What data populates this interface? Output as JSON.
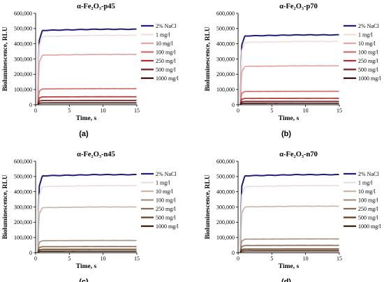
{
  "figure": {
    "panel_labels": [
      "(a)",
      "(b)",
      "(c)",
      "(d)"
    ]
  },
  "chart_data": [
    {
      "type": "line",
      "title": "α-Fe₂O₃-p45",
      "xlabel": "Time, s",
      "ylabel": "Bioluminescence, RLU",
      "xlim": [
        0,
        15
      ],
      "ylim": [
        0,
        600000
      ],
      "xticks": [
        0,
        5,
        10,
        15
      ],
      "yticks": [
        0,
        100000,
        200000,
        300000,
        400000,
        500000,
        600000
      ],
      "ytick_labels": [
        "0",
        "100,000",
        "200,000",
        "300,000",
        "400,000",
        "500,000",
        "600,000"
      ],
      "legend_position": "right",
      "series": [
        {
          "name": "2% NaCl",
          "color": "#1f1f7a",
          "plateau": 495000
        },
        {
          "name": "1 mg/l",
          "color": "#f2dede",
          "plateau": 455000
        },
        {
          "name": "10 mg/l",
          "color": "#eaa3a3",
          "plateau": 330000
        },
        {
          "name": "100 mg/l",
          "color": "#d07070",
          "plateau": 105000
        },
        {
          "name": "250 mg/l",
          "color": "#b23030",
          "plateau": 52000
        },
        {
          "name": "500 mg/l",
          "color": "#7a1f1f",
          "plateau": 28000
        },
        {
          "name": "1000 mg/l",
          "color": "#3e0b0b",
          "plateau": 12000
        }
      ]
    },
    {
      "type": "line",
      "title": "α-Fe₂O₃-p70",
      "xlabel": "Time, s",
      "ylabel": "Bioluminescence, RLU",
      "xlim": [
        0,
        15
      ],
      "ylim": [
        0,
        600000
      ],
      "xticks": [
        0,
        5,
        10,
        15
      ],
      "yticks": [
        0,
        100000,
        200000,
        300000,
        400000,
        500000,
        600000
      ],
      "ytick_labels": [
        "0",
        "100,000",
        "200,000",
        "300,000",
        "400,000",
        "500,000",
        "600,000"
      ],
      "legend_position": "right",
      "series": [
        {
          "name": "2% NaCl",
          "color": "#1f1f7a",
          "plateau": 458000
        },
        {
          "name": "1 mg/l",
          "color": "#f2dede",
          "plateau": 415000
        },
        {
          "name": "10 mg/l",
          "color": "#eaa3a3",
          "plateau": 255000
        },
        {
          "name": "100 mg/l",
          "color": "#d07070",
          "plateau": 88000
        },
        {
          "name": "250 mg/l",
          "color": "#b23030",
          "plateau": 42000
        },
        {
          "name": "500 mg/l",
          "color": "#7a1f1f",
          "plateau": 22000
        },
        {
          "name": "1000 mg/l",
          "color": "#3e0b0b",
          "plateau": 10000
        }
      ]
    },
    {
      "type": "line",
      "title": "α-Fe₂O₃-n45",
      "xlabel": "Time, s",
      "ylabel": "Bioluminescence, RLU",
      "xlim": [
        0,
        15
      ],
      "ylim": [
        0,
        600000
      ],
      "xticks": [
        0,
        5,
        10,
        15
      ],
      "yticks": [
        0,
        100000,
        200000,
        300000,
        400000,
        500000,
        600000
      ],
      "ytick_labels": [
        "0",
        "100,000",
        "200,000",
        "300,000",
        "400,000",
        "500,000",
        "600,000"
      ],
      "legend_position": "right",
      "series": [
        {
          "name": "2% NaCl",
          "color": "#1f1f7a",
          "plateau": 512000
        },
        {
          "name": "1 mg/l",
          "color": "#eedcdc",
          "plateau": 440000
        },
        {
          "name": "10 mg/l",
          "color": "#c9b7aa",
          "plateau": 300000
        },
        {
          "name": "100 mg/l",
          "color": "#a89484",
          "plateau": 80000
        },
        {
          "name": "250 mg/l",
          "color": "#8a6d52",
          "plateau": 40000
        },
        {
          "name": "500 mg/l",
          "color": "#6a3d1c",
          "plateau": 22000
        },
        {
          "name": "1000 mg/l",
          "color": "#3e1c08",
          "plateau": 10000
        }
      ]
    },
    {
      "type": "line",
      "title": "α-Fe₂O₃-n70",
      "xlabel": "Time, s",
      "ylabel": "Bioluminescence, RLU",
      "xlim": [
        0,
        15
      ],
      "ylim": [
        0,
        600000
      ],
      "xticks": [
        0,
        5,
        10,
        15
      ],
      "yticks": [
        0,
        100000,
        200000,
        300000,
        400000,
        500000,
        600000
      ],
      "ytick_labels": [
        "0",
        "100,000",
        "200,000",
        "300,000",
        "400,000",
        "500,000",
        "600,000"
      ],
      "legend_position": "right",
      "series": [
        {
          "name": "2% NaCl",
          "color": "#1f1f7a",
          "plateau": 512000
        },
        {
          "name": "1 mg/l",
          "color": "#eedcdc",
          "plateau": 440000
        },
        {
          "name": "10 mg/l",
          "color": "#c9b7aa",
          "plateau": 305000
        },
        {
          "name": "100 mg/l",
          "color": "#a89484",
          "plateau": 90000
        },
        {
          "name": "250 mg/l",
          "color": "#8a6d52",
          "plateau": 48000
        },
        {
          "name": "500 mg/l",
          "color": "#6a3d1c",
          "plateau": 24000
        },
        {
          "name": "1000 mg/l",
          "color": "#3e1c08",
          "plateau": 12000
        }
      ]
    }
  ]
}
